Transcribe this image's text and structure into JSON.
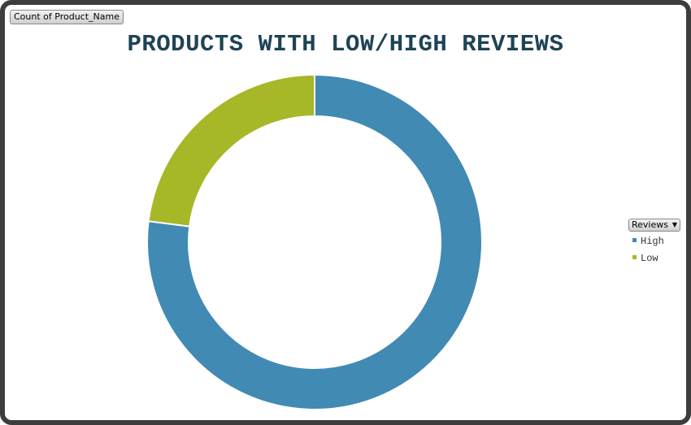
{
  "field_button": {
    "label": "Count of Product_Name"
  },
  "chart_data": {
    "type": "pie",
    "variant": "donut",
    "title": "PRODUCTS WITH LOW/HIGH REVIEWS",
    "categories": [
      "High",
      "Low"
    ],
    "values": [
      77,
      23
    ],
    "colors": [
      "#418ab3",
      "#a6b727"
    ],
    "legend_title": "Reviews",
    "legend_position": "right"
  }
}
